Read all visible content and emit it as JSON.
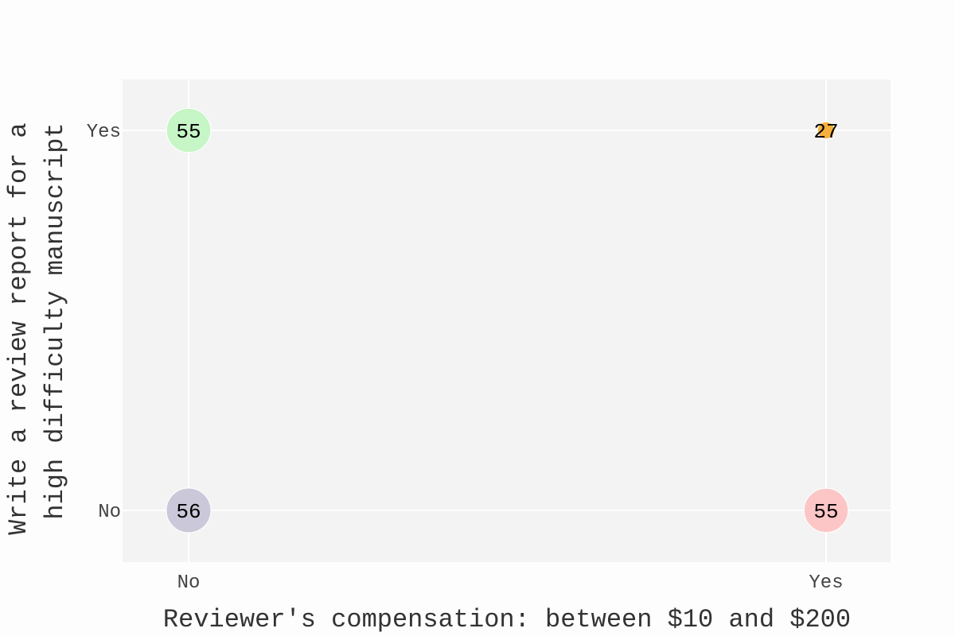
{
  "chart_data": {
    "type": "scatter",
    "title": "",
    "xlabel": "Reviewer's compensation: between $10 and $200",
    "ylabel_lines": [
      "Write a review report for a",
      "high difficulty manuscript"
    ],
    "x_categories": [
      "No",
      "Yes"
    ],
    "y_categories": [
      "No",
      "Yes"
    ],
    "grid": true,
    "legend": "none",
    "plot_background": "#f3f3f3",
    "gridline_color": "#ffffff",
    "points": [
      {
        "x": "No",
        "y": "Yes",
        "value": 55,
        "label": "55",
        "color": "#c6f5c6"
      },
      {
        "x": "Yes",
        "y": "Yes",
        "value": 27,
        "label": "27",
        "color": "#f5b03e"
      },
      {
        "x": "No",
        "y": "No",
        "value": 56,
        "label": "56",
        "color": "#cac8d9"
      },
      {
        "x": "Yes",
        "y": "No",
        "value": 55,
        "label": "55",
        "color": "#fcc6c6"
      }
    ]
  }
}
